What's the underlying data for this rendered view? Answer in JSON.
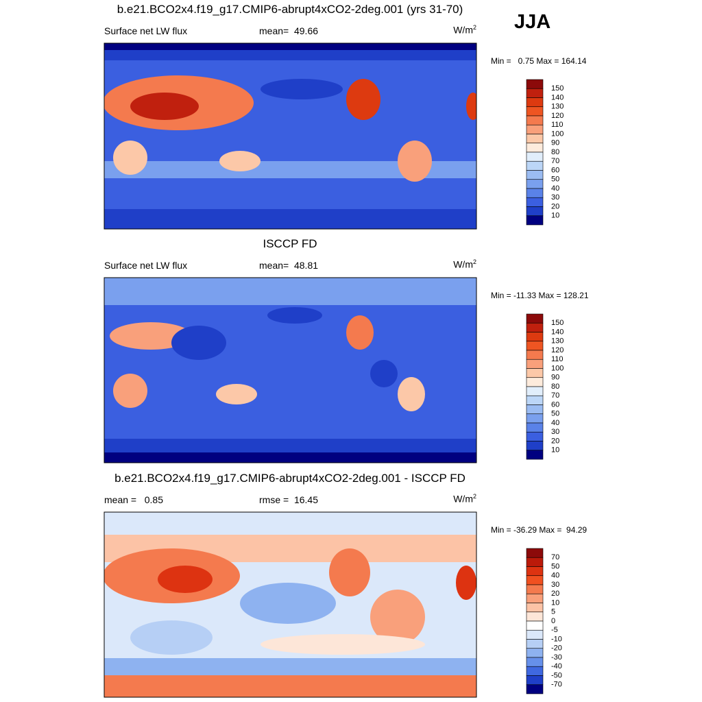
{
  "season": "JJA",
  "panels": [
    {
      "title": "b.e21.BCO2x4.f19_g17.CMIP6-abrupt4xCO2-2deg.001 (yrs 31-70)",
      "left_label": "Surface net LW flux",
      "center_label": "mean=  49.66",
      "units": {
        "base": "W/m",
        "sup": "2"
      },
      "minmax": "Min =   0.75 Max = 164.14",
      "colorbar": {
        "labels": [
          150,
          140,
          130,
          120,
          110,
          100,
          90,
          80,
          70,
          60,
          50,
          40,
          30,
          20,
          10
        ],
        "colors": [
          "#8c0a0a",
          "#c0200e",
          "#dd3a10",
          "#ee5522",
          "#f47a4e",
          "#f9a07b",
          "#fcc8a8",
          "#fdebdc",
          "#e1eefb",
          "#bcd6f7",
          "#9bbcf2",
          "#7aa0ee",
          "#5a82e8",
          "#3b5fe0",
          "#1f3fc8",
          "#000080"
        ]
      }
    },
    {
      "title": "ISCCP FD",
      "left_label": "Surface net LW flux",
      "center_label": "mean=  48.81",
      "units": {
        "base": "W/m",
        "sup": "2"
      },
      "minmax": "Min = -11.33 Max = 128.21",
      "colorbar": {
        "labels": [
          150,
          140,
          130,
          120,
          110,
          100,
          90,
          80,
          70,
          60,
          50,
          40,
          30,
          20,
          10
        ],
        "colors": [
          "#8c0a0a",
          "#c0200e",
          "#dd3a10",
          "#ee5522",
          "#f47a4e",
          "#f9a07b",
          "#fcc8a8",
          "#fdebdc",
          "#e1eefb",
          "#bcd6f7",
          "#9bbcf2",
          "#7aa0ee",
          "#5a82e8",
          "#3b5fe0",
          "#1f3fc8",
          "#000080"
        ]
      }
    },
    {
      "title": "b.e21.BCO2x4.f19_g17.CMIP6-abrupt4xCO2-2deg.001 - ISCCP FD",
      "left_label": "mean =   0.85",
      "center_label": "rmse =  16.45",
      "units": {
        "base": "W/m",
        "sup": "2"
      },
      "minmax": "Min = -36.29 Max =  94.29",
      "colorbar": {
        "labels": [
          70,
          50,
          40,
          30,
          20,
          10,
          5,
          0,
          -5,
          -10,
          -20,
          -30,
          -40,
          -50,
          -70
        ],
        "colors": [
          "#8c0a0a",
          "#bb1a0a",
          "#dd3311",
          "#f05020",
          "#f47a4e",
          "#f9a07b",
          "#fcc3a6",
          "#fde6d8",
          "#ffffff",
          "#dbe8fa",
          "#b6cff5",
          "#8eb2f0",
          "#6690ea",
          "#3f68e0",
          "#1f3fc8",
          "#000080"
        ]
      }
    }
  ]
}
